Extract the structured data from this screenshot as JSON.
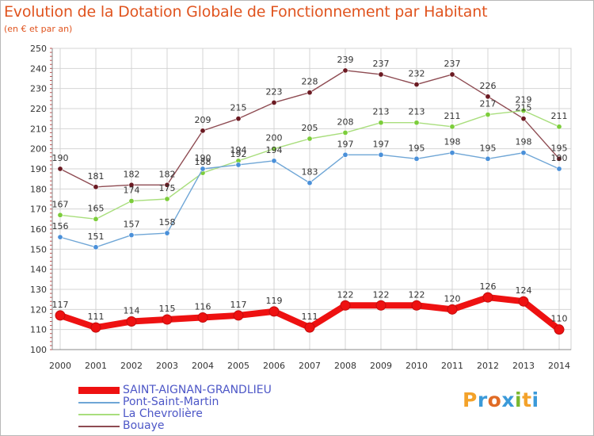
{
  "header": {
    "title": "Evolution de la Dotation Globale de Fonctionnement par Habitant",
    "subtitle": "(en € et par an)"
  },
  "logo": {
    "text": "Proxiti",
    "letters": [
      "P",
      "r",
      "o",
      "x",
      "i",
      "t",
      "i"
    ]
  },
  "chart_data": {
    "type": "line",
    "x": [
      2000,
      2001,
      2002,
      2003,
      2004,
      2005,
      2006,
      2007,
      2008,
      2009,
      2010,
      2011,
      2012,
      2013,
      2014
    ],
    "ylim": [
      100,
      250
    ],
    "yticks": [
      100,
      110,
      120,
      130,
      140,
      150,
      160,
      170,
      180,
      190,
      200,
      210,
      220,
      230,
      240,
      250
    ],
    "grid": true,
    "legend_position": "bottom-left",
    "series": [
      {
        "name": "SAINT-AIGNAN-GRANDLIEU",
        "color": "#ee1111",
        "marker_color": "#ee1111",
        "width": "thick",
        "values": [
          117,
          111,
          114,
          115,
          116,
          117,
          119,
          111,
          122,
          122,
          122,
          120,
          126,
          124,
          110
        ]
      },
      {
        "name": "Pont-Saint-Martin",
        "color": "#6fa6d6",
        "marker_color": "#4a90d9",
        "width": "thin",
        "values": [
          156,
          151,
          157,
          158,
          190,
          192,
          194,
          183,
          197,
          197,
          195,
          198,
          195,
          198,
          190
        ]
      },
      {
        "name": "La Chevrolière",
        "color": "#a9de7d",
        "marker_color": "#7ccd3b",
        "width": "thin",
        "values": [
          167,
          165,
          174,
          175,
          188,
          194,
          200,
          205,
          208,
          213,
          213,
          211,
          217,
          219,
          211
        ]
      },
      {
        "name": "Bouaye",
        "color": "#8e4b52",
        "marker_color": "#6b1a22",
        "width": "thin",
        "values": [
          190,
          181,
          182,
          182,
          209,
          215,
          223,
          228,
          239,
          237,
          232,
          237,
          226,
          215,
          195
        ]
      }
    ]
  }
}
